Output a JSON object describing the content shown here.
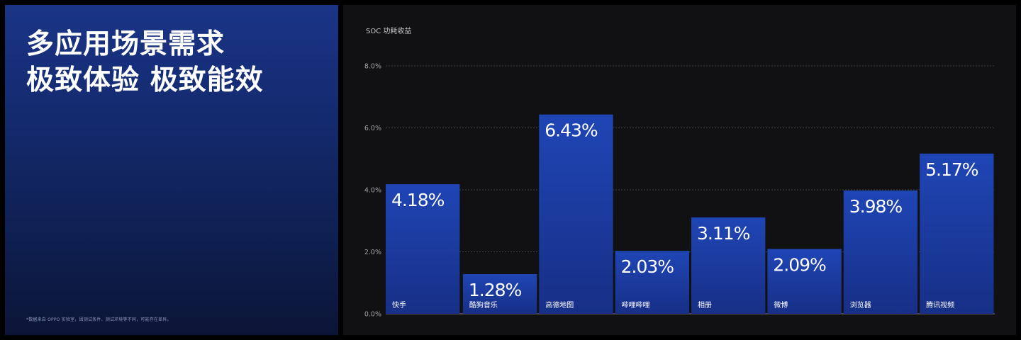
{
  "headline": {
    "line1": "多应用场景需求",
    "line2": "极致体验 极致能效"
  },
  "footnote": "*数据来自 OPPO 实验室，因测试条件、测试环境等不同，可能存在差异。",
  "colors": {
    "bar_top": "#1f45b5",
    "bar_bottom": "#172f86",
    "grid": "#3a3a40",
    "axis": "#8a8a90"
  },
  "chart_data": {
    "type": "bar",
    "title": "SOC 功耗收益",
    "categories": [
      "快手",
      "酷狗音乐",
      "高德地图",
      "哔哩哔哩",
      "相册",
      "微博",
      "浏览器",
      "腾讯视频"
    ],
    "values": [
      4.18,
      1.28,
      6.43,
      2.03,
      3.11,
      2.09,
      3.98,
      5.17
    ],
    "value_labels": [
      "4.18%",
      "1.28%",
      "6.43%",
      "2.03%",
      "3.11%",
      "2.09%",
      "3.98%",
      "5.17%"
    ],
    "yticks": [
      "0.0%",
      "2.0%",
      "4.0%",
      "6.0%",
      "8.0%"
    ],
    "ytick_values": [
      0,
      2,
      4,
      6,
      8
    ],
    "ylim": [
      0,
      8
    ],
    "grid": true,
    "legend": "none"
  }
}
